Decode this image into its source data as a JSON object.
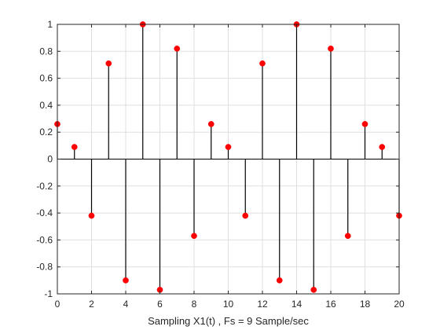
{
  "chart_data": {
    "type": "stem",
    "title": "",
    "xlabel": "Sampling X1(t) , Fs = 9 Sample/sec",
    "ylabel": "",
    "xlim": [
      0,
      20
    ],
    "ylim": [
      -1,
      1
    ],
    "grid": true,
    "x_ticks": [
      0,
      2,
      4,
      6,
      8,
      10,
      12,
      14,
      16,
      18,
      20
    ],
    "x_tick_labels": [
      "0",
      "2",
      "4",
      "6",
      "8",
      "10",
      "12",
      "14",
      "16",
      "18",
      "20"
    ],
    "y_ticks": [
      1,
      0.8,
      0.6,
      0.4,
      0.2,
      0,
      -0.2,
      -0.4,
      -0.6,
      -0.8,
      -1
    ],
    "y_tick_labels": [
      "1",
      "0.8",
      "0.6",
      "0.4",
      "0.2",
      "0",
      "-0.2",
      "-0.4",
      "-0.6",
      "-0.8",
      "-1"
    ],
    "stem_color": "#000000",
    "marker_color": "#ff0000",
    "series": [
      {
        "x": [
          0,
          1,
          2,
          3,
          4,
          5,
          6,
          7,
          8,
          9,
          10,
          11,
          12,
          13,
          14,
          15,
          16,
          17,
          18,
          19,
          20
        ],
        "values": [
          0.26,
          0.09,
          -0.42,
          0.71,
          -0.9,
          1.0,
          -0.97,
          0.82,
          -0.57,
          0.26,
          0.09,
          -0.42,
          0.71,
          -0.9,
          1.0,
          -0.97,
          0.82,
          -0.57,
          0.26,
          0.09,
          -0.42
        ]
      }
    ]
  }
}
